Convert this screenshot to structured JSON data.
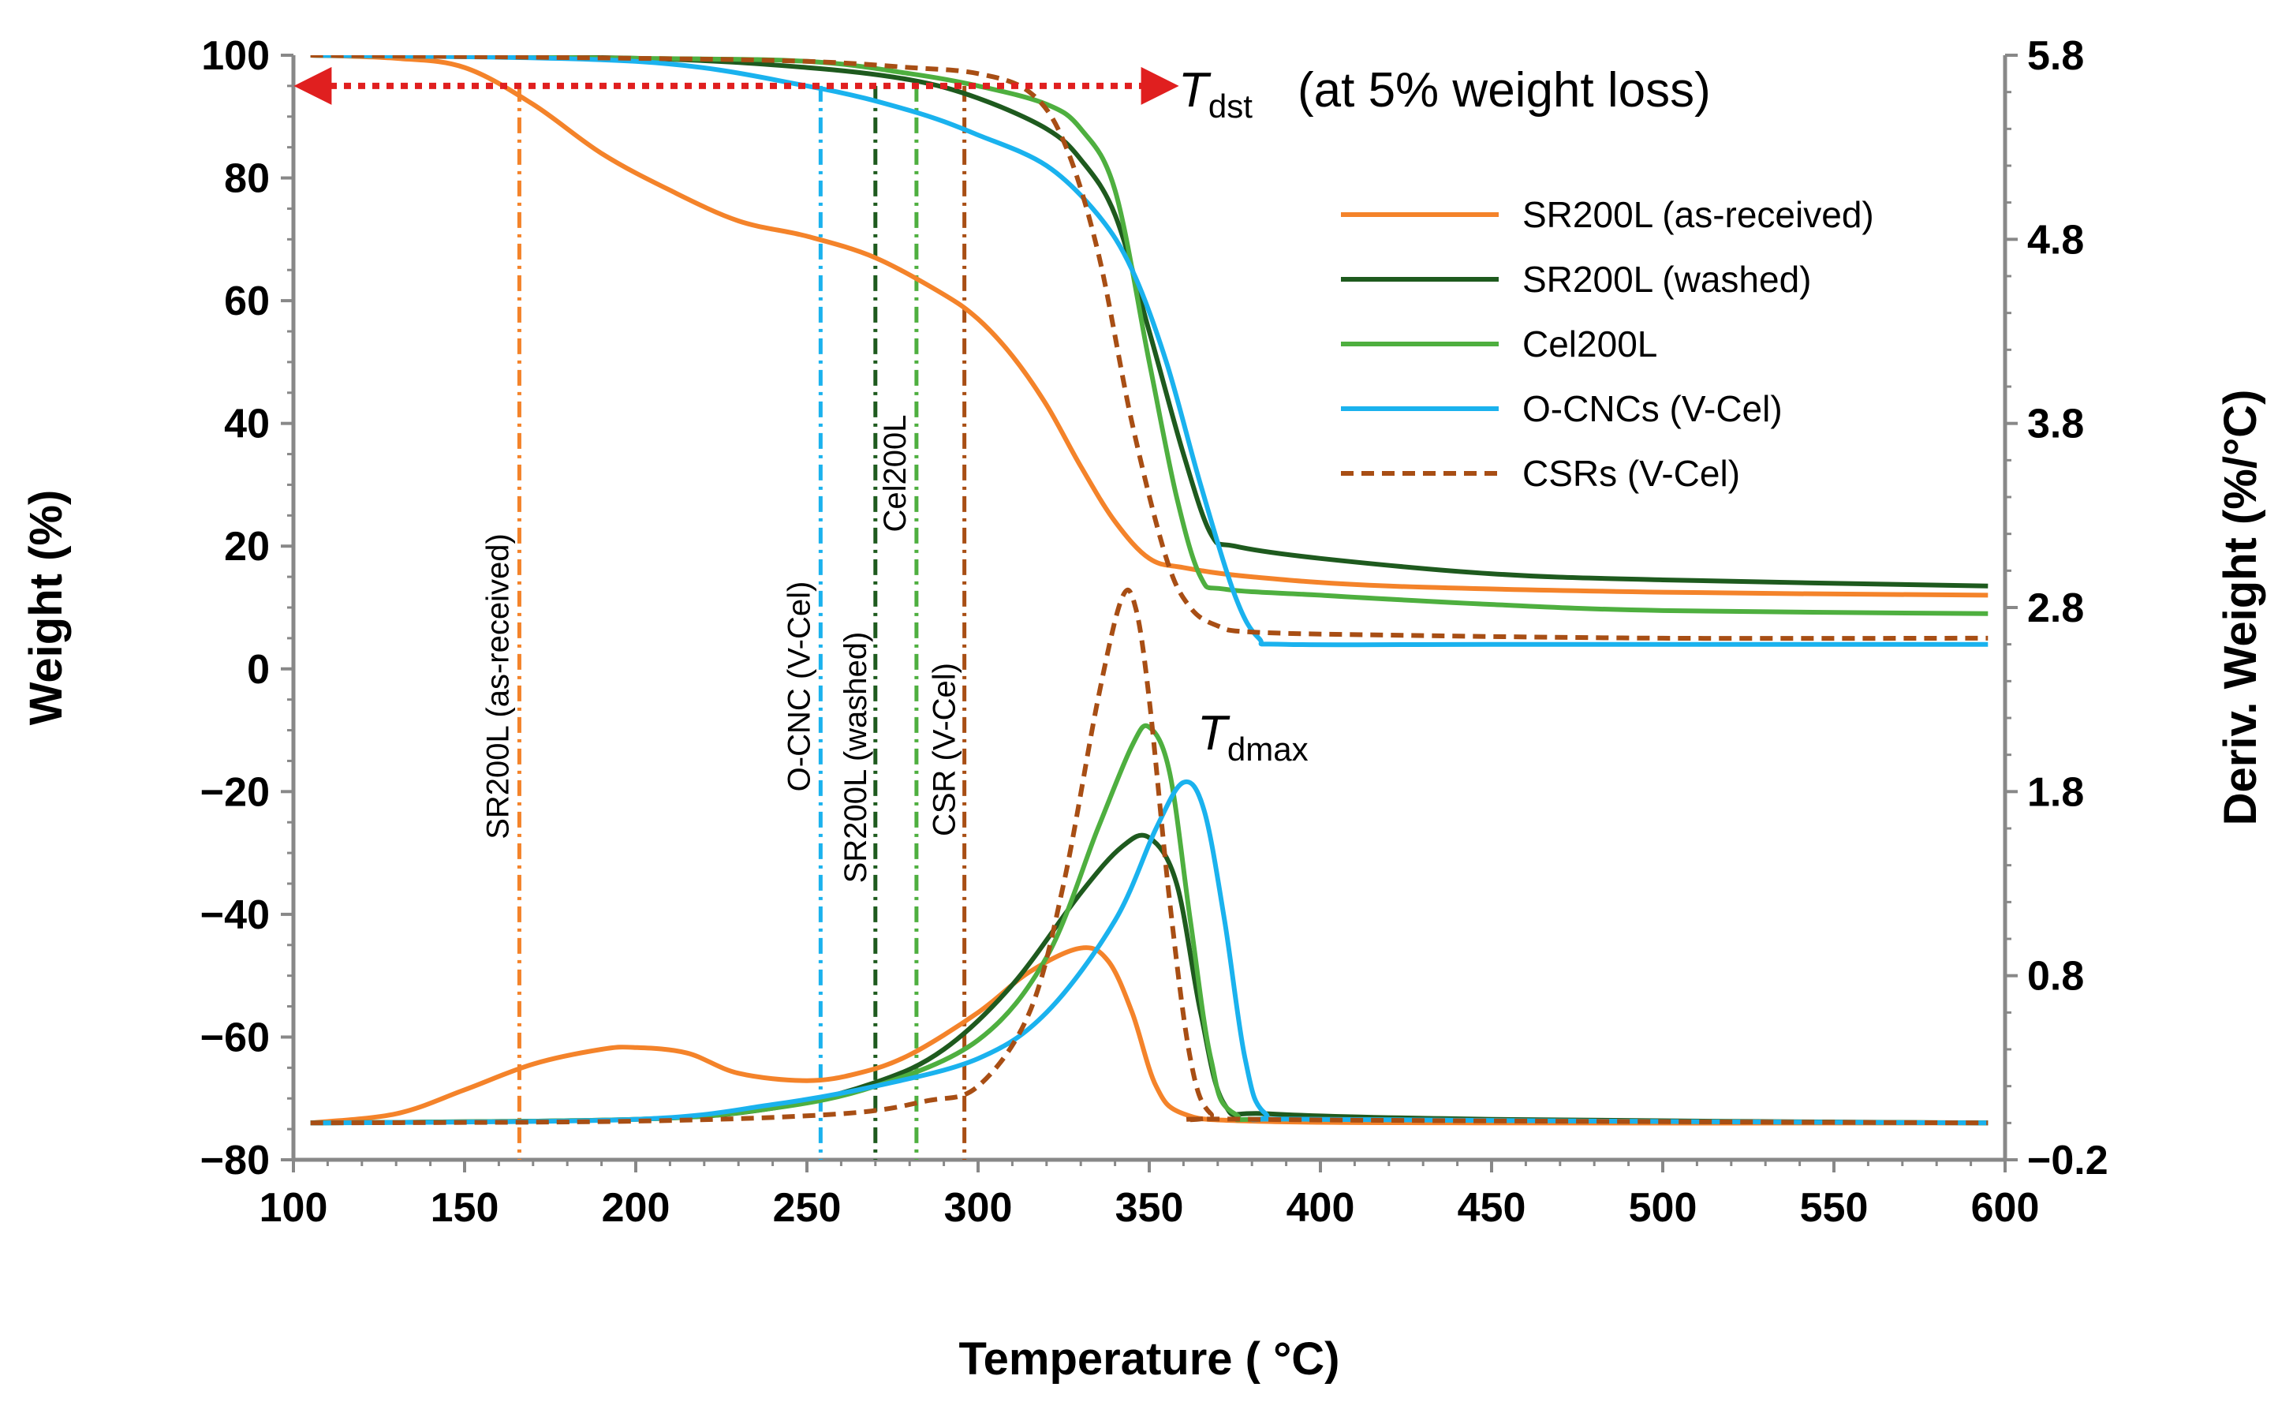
{
  "chart_data": {
    "type": "line",
    "xlabel": "Temperature ( °C)",
    "ylabel": "Weight (%)",
    "y2label": "Deriv. Weight (%/°C)",
    "xlim": [
      100,
      600
    ],
    "ylim": [
      -80,
      100
    ],
    "y2lim": [
      -0.2,
      5.8
    ],
    "x_ticks": [
      "100",
      "150",
      "200",
      "250",
      "300",
      "350",
      "400",
      "450",
      "500",
      "550",
      "600"
    ],
    "y_ticks": [
      "100",
      "80",
      "60",
      "40",
      "20",
      "0",
      "−20",
      "−40",
      "−60",
      "−80"
    ],
    "y2_ticks": [
      "5.8",
      "4.8",
      "3.8",
      "2.8",
      "1.8",
      "0.8",
      "−0.2"
    ],
    "grid": false,
    "legend_position": "right",
    "annotations": {
      "tdst_T": "T",
      "tdst_sub": "dst",
      "tdst_text": "(at 5% weight loss)",
      "tdmax_T": "T",
      "tdmax_sub": "dmax",
      "tdst_level": 95
    },
    "series": [
      {
        "name": "SR200L (as-received)",
        "color": "#f4832a",
        "dash": "solid",
        "weight": [
          [
            105,
            100
          ],
          [
            130,
            99.5
          ],
          [
            150,
            98
          ],
          [
            170,
            92
          ],
          [
            190,
            84
          ],
          [
            210,
            78
          ],
          [
            230,
            73
          ],
          [
            250,
            70.5
          ],
          [
            270,
            67
          ],
          [
            290,
            61
          ],
          [
            300,
            57
          ],
          [
            310,
            51
          ],
          [
            320,
            43
          ],
          [
            330,
            33
          ],
          [
            340,
            24
          ],
          [
            350,
            18
          ],
          [
            360,
            16.5
          ],
          [
            380,
            15
          ],
          [
            420,
            13.5
          ],
          [
            500,
            12.5
          ],
          [
            595,
            12
          ]
        ],
        "deriv": [
          [
            105,
            0.0
          ],
          [
            130,
            0.05
          ],
          [
            150,
            0.18
          ],
          [
            170,
            0.32
          ],
          [
            190,
            0.4
          ],
          [
            200,
            0.41
          ],
          [
            215,
            0.38
          ],
          [
            230,
            0.27
          ],
          [
            250,
            0.23
          ],
          [
            265,
            0.27
          ],
          [
            280,
            0.37
          ],
          [
            300,
            0.6
          ],
          [
            315,
            0.82
          ],
          [
            330,
            0.95
          ],
          [
            338,
            0.88
          ],
          [
            345,
            0.6
          ],
          [
            352,
            0.2
          ],
          [
            360,
            0.05
          ],
          [
            380,
            0.01
          ],
          [
            450,
            0.0
          ],
          [
            595,
            0.0
          ]
        ]
      },
      {
        "name": "SR200L (washed)",
        "color": "#1e5a1e",
        "dash": "solid",
        "weight": [
          [
            105,
            100
          ],
          [
            200,
            99.5
          ],
          [
            250,
            98
          ],
          [
            280,
            96
          ],
          [
            300,
            93
          ],
          [
            320,
            88
          ],
          [
            330,
            83
          ],
          [
            340,
            74
          ],
          [
            350,
            55
          ],
          [
            360,
            35
          ],
          [
            368,
            22
          ],
          [
            375,
            20
          ],
          [
            400,
            18
          ],
          [
            450,
            15.5
          ],
          [
            500,
            14.5
          ],
          [
            595,
            13.5
          ]
        ],
        "deriv": [
          [
            105,
            0.0
          ],
          [
            200,
            0.02
          ],
          [
            240,
            0.08
          ],
          [
            270,
            0.22
          ],
          [
            290,
            0.4
          ],
          [
            310,
            0.75
          ],
          [
            330,
            1.25
          ],
          [
            342,
            1.5
          ],
          [
            350,
            1.55
          ],
          [
            358,
            1.3
          ],
          [
            365,
            0.6
          ],
          [
            372,
            0.1
          ],
          [
            385,
            0.05
          ],
          [
            450,
            0.02
          ],
          [
            595,
            0.0
          ]
        ]
      },
      {
        "name": "Cel200L",
        "color": "#4eaf3f",
        "dash": "solid",
        "weight": [
          [
            105,
            100
          ],
          [
            200,
            99.5
          ],
          [
            250,
            99
          ],
          [
            280,
            97
          ],
          [
            300,
            95
          ],
          [
            320,
            92
          ],
          [
            330,
            88
          ],
          [
            340,
            78
          ],
          [
            350,
            50
          ],
          [
            358,
            28
          ],
          [
            365,
            15
          ],
          [
            372,
            13
          ],
          [
            400,
            12
          ],
          [
            450,
            10.5
          ],
          [
            500,
            9.5
          ],
          [
            595,
            9
          ]
        ],
        "deriv": [
          [
            105,
            0.0
          ],
          [
            200,
            0.02
          ],
          [
            240,
            0.08
          ],
          [
            270,
            0.2
          ],
          [
            300,
            0.45
          ],
          [
            320,
            0.9
          ],
          [
            335,
            1.6
          ],
          [
            345,
            2.05
          ],
          [
            350,
            2.15
          ],
          [
            356,
            1.9
          ],
          [
            362,
            1.1
          ],
          [
            368,
            0.35
          ],
          [
            375,
            0.05
          ],
          [
            400,
            0.02
          ],
          [
            595,
            0.0
          ]
        ]
      },
      {
        "name": "O-CNCs (V-Cel)",
        "color": "#1ab2ee",
        "dash": "solid",
        "weight": [
          [
            105,
            100
          ],
          [
            200,
            99
          ],
          [
            250,
            95
          ],
          [
            280,
            91
          ],
          [
            300,
            87
          ],
          [
            320,
            82
          ],
          [
            335,
            74
          ],
          [
            345,
            65
          ],
          [
            355,
            50
          ],
          [
            365,
            30
          ],
          [
            375,
            12
          ],
          [
            382,
            5
          ],
          [
            390,
            4
          ],
          [
            450,
            4
          ],
          [
            595,
            4
          ]
        ],
        "deriv": [
          [
            105,
            0.0
          ],
          [
            200,
            0.02
          ],
          [
            240,
            0.1
          ],
          [
            270,
            0.2
          ],
          [
            300,
            0.35
          ],
          [
            320,
            0.6
          ],
          [
            340,
            1.1
          ],
          [
            352,
            1.6
          ],
          [
            360,
            1.85
          ],
          [
            366,
            1.7
          ],
          [
            372,
            1.1
          ],
          [
            378,
            0.35
          ],
          [
            384,
            0.05
          ],
          [
            400,
            0.02
          ],
          [
            595,
            0.0
          ]
        ]
      },
      {
        "name": "CSRs (V-Cel)",
        "color": "#a84e14",
        "dash": "dashed",
        "weight": [
          [
            105,
            100
          ],
          [
            200,
            99.5
          ],
          [
            250,
            99
          ],
          [
            280,
            98
          ],
          [
            300,
            97
          ],
          [
            315,
            94
          ],
          [
            325,
            86
          ],
          [
            335,
            68
          ],
          [
            345,
            40
          ],
          [
            355,
            18
          ],
          [
            362,
            10
          ],
          [
            370,
            7
          ],
          [
            380,
            6
          ],
          [
            420,
            5.5
          ],
          [
            500,
            5
          ],
          [
            595,
            5
          ]
        ],
        "deriv": [
          [
            105,
            0.0
          ],
          [
            200,
            0.01
          ],
          [
            260,
            0.05
          ],
          [
            285,
            0.12
          ],
          [
            300,
            0.2
          ],
          [
            315,
            0.6
          ],
          [
            325,
            1.3
          ],
          [
            335,
            2.3
          ],
          [
            342,
            2.85
          ],
          [
            346,
            2.8
          ],
          [
            350,
            2.3
          ],
          [
            356,
            1.2
          ],
          [
            362,
            0.35
          ],
          [
            368,
            0.05
          ],
          [
            380,
            0.02
          ],
          [
            595,
            0.0
          ]
        ]
      }
    ],
    "vertical_markers": [
      {
        "label": "SR200L (as-received)",
        "x": 166,
        "color": "#f4832a"
      },
      {
        "label": "O-CNC (V-Cel)",
        "x": 254,
        "color": "#1ab2ee"
      },
      {
        "label": "SR200L (washed)",
        "x": 270,
        "color": "#1e5a1e"
      },
      {
        "label": "Cel200L",
        "x": 282,
        "color": "#4eaf3f"
      },
      {
        "label": "CSR (V-Cel)",
        "x": 296,
        "color": "#a84e14"
      }
    ]
  }
}
